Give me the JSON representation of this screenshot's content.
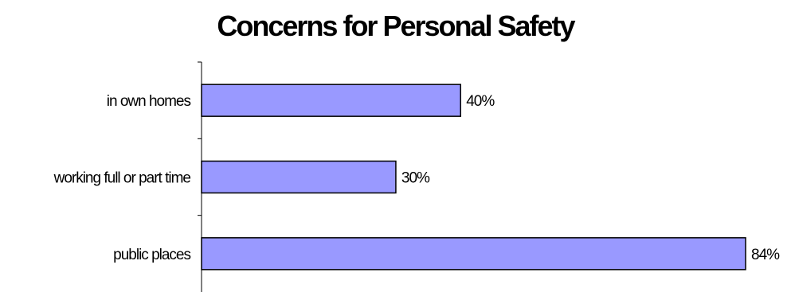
{
  "chart_data": {
    "type": "bar",
    "orientation": "horizontal",
    "title": "Concerns for Personal Safety",
    "categories": [
      "in own homes",
      "working full or part time",
      "public places"
    ],
    "values": [
      40,
      30,
      84
    ],
    "value_labels": [
      "40%",
      "30%",
      "84%"
    ],
    "xlim": [
      0,
      84
    ],
    "xlabel": "",
    "ylabel": "",
    "grid": false,
    "legend": "none",
    "bar_color": "#9999ff",
    "bar_edge_color": "#000000"
  }
}
